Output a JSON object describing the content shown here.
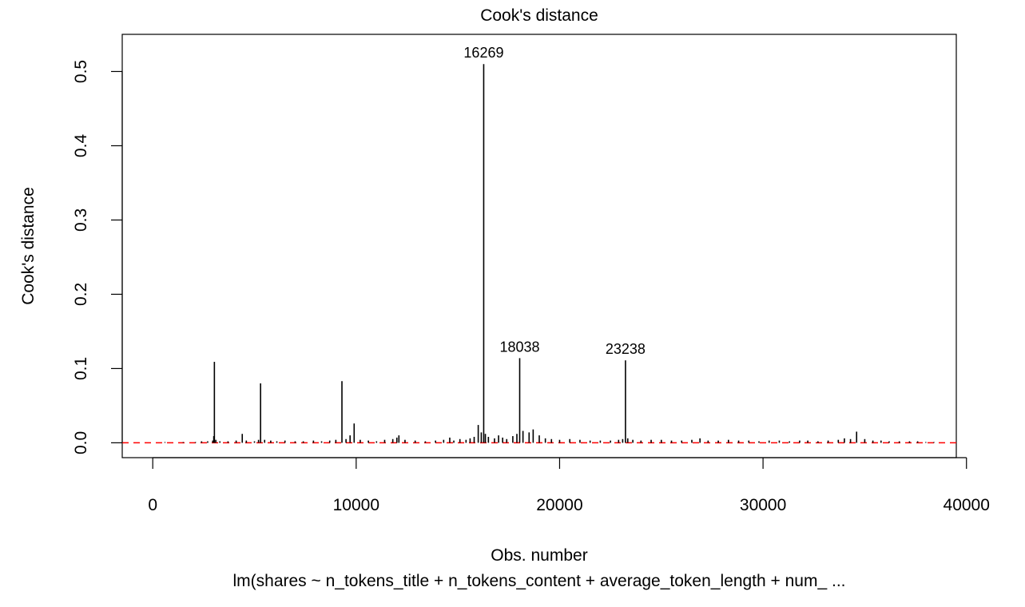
{
  "chart_data": {
    "type": "bar",
    "title": "Cook's distance",
    "xlabel": "Obs. number",
    "subtitle": "lm(shares ~ n_tokens_title + n_tokens_content + average_token_length + num_ ...",
    "ylabel": "Cook's distance",
    "xlim": [
      -1500,
      39500
    ],
    "ylim": [
      -0.02,
      0.55
    ],
    "x_ticks": [
      0,
      10000,
      20000,
      30000,
      40000
    ],
    "x_tick_labels": [
      "0",
      "10000",
      "20000",
      "30000",
      "40000"
    ],
    "y_ticks": [
      0.0,
      0.1,
      0.2,
      0.3,
      0.4,
      0.5
    ],
    "y_tick_labels": [
      "0.0",
      "0.1",
      "0.2",
      "0.3",
      "0.4",
      "0.5"
    ],
    "reference_line": {
      "y": 0,
      "color": "#ff0000",
      "style": "dashed"
    },
    "bar_color": "#000000",
    "x": [
      600,
      1500,
      2100,
      2400,
      2700,
      2950,
      3000,
      3030,
      3100,
      3300,
      3700,
      4100,
      4400,
      4600,
      5000,
      5200,
      5300,
      5500,
      5800,
      6100,
      6500,
      7000,
      7400,
      7900,
      8300,
      8700,
      9000,
      9300,
      9500,
      9700,
      9900,
      10200,
      10600,
      11000,
      11400,
      11800,
      12000,
      12100,
      12400,
      12900,
      13400,
      13900,
      14300,
      14600,
      14800,
      15100,
      15400,
      15600,
      15800,
      16000,
      16150,
      16269,
      16350,
      16500,
      16800,
      17000,
      17200,
      17400,
      17700,
      17900,
      18038,
      18200,
      18500,
      18700,
      19000,
      19300,
      19600,
      20000,
      20500,
      21000,
      21500,
      22000,
      22500,
      22900,
      23100,
      23238,
      23350,
      23600,
      24000,
      24500,
      25000,
      25500,
      26000,
      26500,
      26900,
      27300,
      27800,
      28300,
      28800,
      29300,
      29800,
      30300,
      30800,
      31300,
      31800,
      32200,
      32700,
      33200,
      33700,
      34000,
      34300,
      34600,
      35000,
      35400,
      35800,
      36200,
      36700,
      37200,
      37600,
      38000,
      38400
    ],
    "values": [
      0.001,
      0.001,
      0.001,
      0.002,
      0.002,
      0.003,
      0.009,
      0.109,
      0.004,
      0.002,
      0.002,
      0.003,
      0.012,
      0.003,
      0.002,
      0.004,
      0.08,
      0.004,
      0.003,
      0.002,
      0.003,
      0.002,
      0.002,
      0.003,
      0.002,
      0.003,
      0.004,
      0.083,
      0.005,
      0.01,
      0.026,
      0.004,
      0.003,
      0.002,
      0.004,
      0.005,
      0.007,
      0.01,
      0.004,
      0.003,
      0.002,
      0.003,
      0.004,
      0.007,
      0.003,
      0.005,
      0.004,
      0.006,
      0.008,
      0.024,
      0.014,
      0.51,
      0.012,
      0.008,
      0.006,
      0.01,
      0.007,
      0.005,
      0.009,
      0.012,
      0.114,
      0.016,
      0.014,
      0.018,
      0.01,
      0.006,
      0.005,
      0.004,
      0.005,
      0.004,
      0.003,
      0.003,
      0.003,
      0.004,
      0.005,
      0.111,
      0.006,
      0.004,
      0.003,
      0.004,
      0.004,
      0.003,
      0.003,
      0.004,
      0.006,
      0.003,
      0.003,
      0.004,
      0.003,
      0.003,
      0.002,
      0.003,
      0.003,
      0.002,
      0.003,
      0.003,
      0.002,
      0.003,
      0.004,
      0.006,
      0.005,
      0.015,
      0.005,
      0.003,
      0.003,
      0.002,
      0.002,
      0.002,
      0.002,
      0.001,
      0.001
    ],
    "labeled_points": [
      {
        "label": "16269",
        "x": 16269,
        "y": 0.51
      },
      {
        "label": "18038",
        "x": 18038,
        "y": 0.114
      },
      {
        "label": "23238",
        "x": 23238,
        "y": 0.111
      }
    ]
  }
}
